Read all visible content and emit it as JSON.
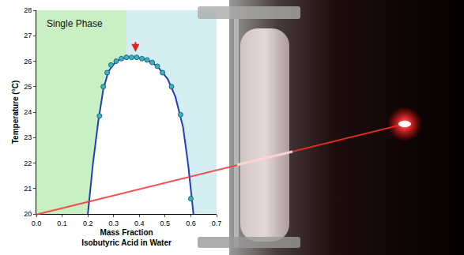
{
  "chart_data": {
    "type": "scatter",
    "x_label": [
      "Mass Fraction",
      "Isobutyric Acid in Water"
    ],
    "y_label": "Temperature (°C)",
    "annotations": [
      "Single Phase"
    ],
    "critical_point": {
      "x": 0.385,
      "y": 26.3
    },
    "series": [
      {
        "type": "scatter",
        "marker": "circle",
        "color": "#3cb8a8",
        "x": [
          0.245,
          0.26,
          0.275,
          0.29,
          0.31,
          0.33,
          0.35,
          0.37,
          0.39,
          0.41,
          0.43,
          0.45,
          0.47,
          0.49,
          0.525,
          0.56,
          0.6
        ],
        "values": [
          23.85,
          25.0,
          25.55,
          25.85,
          26.0,
          26.1,
          26.15,
          26.15,
          26.15,
          26.1,
          26.05,
          25.95,
          25.8,
          25.55,
          25.0,
          23.9,
          20.6
        ]
      },
      {
        "type": "line",
        "line_style": "solid",
        "color": "#1f3fbf",
        "x": [
          0.2,
          0.22,
          0.24,
          0.26,
          0.28,
          0.31,
          0.35,
          0.39,
          0.43,
          0.47,
          0.51,
          0.54,
          0.57,
          0.59,
          0.61
        ],
        "values": [
          20.0,
          22.0,
          23.6,
          24.9,
          25.6,
          26.0,
          26.15,
          26.15,
          26.05,
          25.8,
          25.3,
          24.6,
          23.4,
          21.9,
          20.0
        ]
      }
    ],
    "xlim": [
      0,
      0.7
    ],
    "xticks": [
      {
        "value": 0,
        "label": "0.0"
      },
      0.1,
      0.2,
      0.3,
      0.4,
      0.5,
      0.6,
      0.7
    ],
    "ylim": [
      20,
      28
    ],
    "yticks": [
      20,
      21,
      22,
      23,
      24,
      25,
      26,
      27,
      28
    ],
    "grid": false
  }
}
